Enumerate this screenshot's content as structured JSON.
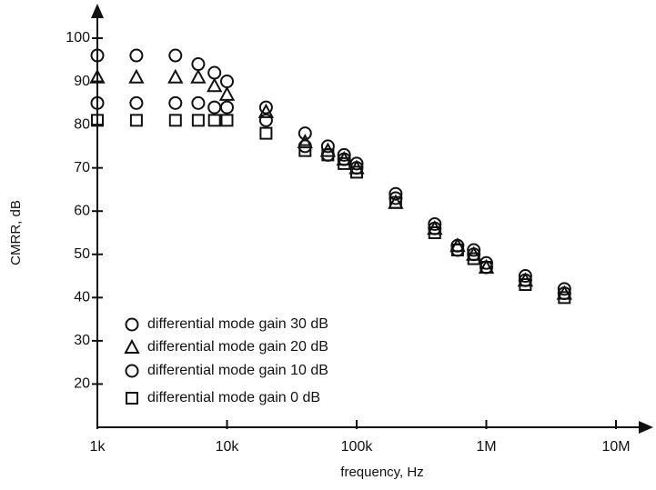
{
  "chart_data": {
    "type": "scatter",
    "log_x": true,
    "ylabel": "CMRR, dB",
    "xlabel": "frequency, Hz",
    "x": [
      1000,
      2000,
      4000,
      6000,
      8000,
      10000,
      20000,
      40000,
      60000,
      80000,
      100000,
      200000,
      400000,
      600000,
      800000,
      1000000,
      2000000,
      4000000
    ],
    "series": [
      {
        "name": "differential mode gain 30 dB",
        "marker": "circle",
        "color": "#111111",
        "values": [
          96,
          96,
          96,
          94,
          92,
          90,
          84,
          78,
          75,
          73,
          71,
          64,
          57,
          52,
          51,
          48,
          45,
          42
        ]
      },
      {
        "name": "differential mode gain 20 dB",
        "marker": "triangle",
        "color": "#111111",
        "values": [
          91,
          91,
          91,
          91,
          89,
          87,
          83,
          76,
          74,
          72,
          70,
          62,
          56,
          52,
          50,
          47,
          44,
          41
        ]
      },
      {
        "name": "differential mode gain 10 dB",
        "marker": "circle",
        "color": "#111111",
        "values": [
          85,
          85,
          85,
          85,
          84,
          84,
          81,
          75,
          73,
          72,
          70,
          63,
          56,
          51,
          50,
          47,
          44,
          41
        ]
      },
      {
        "name": "differential mode gain 0 dB",
        "marker": "square",
        "color": "#111111",
        "values": [
          81,
          81,
          81,
          81,
          81,
          81,
          78,
          74,
          73,
          71,
          69,
          62,
          55,
          51,
          49,
          47,
          43,
          40
        ]
      }
    ],
    "xlim": [
      1000,
      10000000
    ],
    "xticks": [
      {
        "value": 1000,
        "label": "1k"
      },
      {
        "value": 10000,
        "label": "10k"
      },
      {
        "value": 100000,
        "label": "100k"
      },
      {
        "value": 1000000,
        "label": "1M"
      },
      {
        "value": 10000000,
        "label": "10M"
      }
    ],
    "ylim": [
      10,
      100
    ],
    "yticks": [
      20,
      30,
      40,
      50,
      60,
      70,
      80,
      90,
      100
    ],
    "legend": "lower left"
  }
}
